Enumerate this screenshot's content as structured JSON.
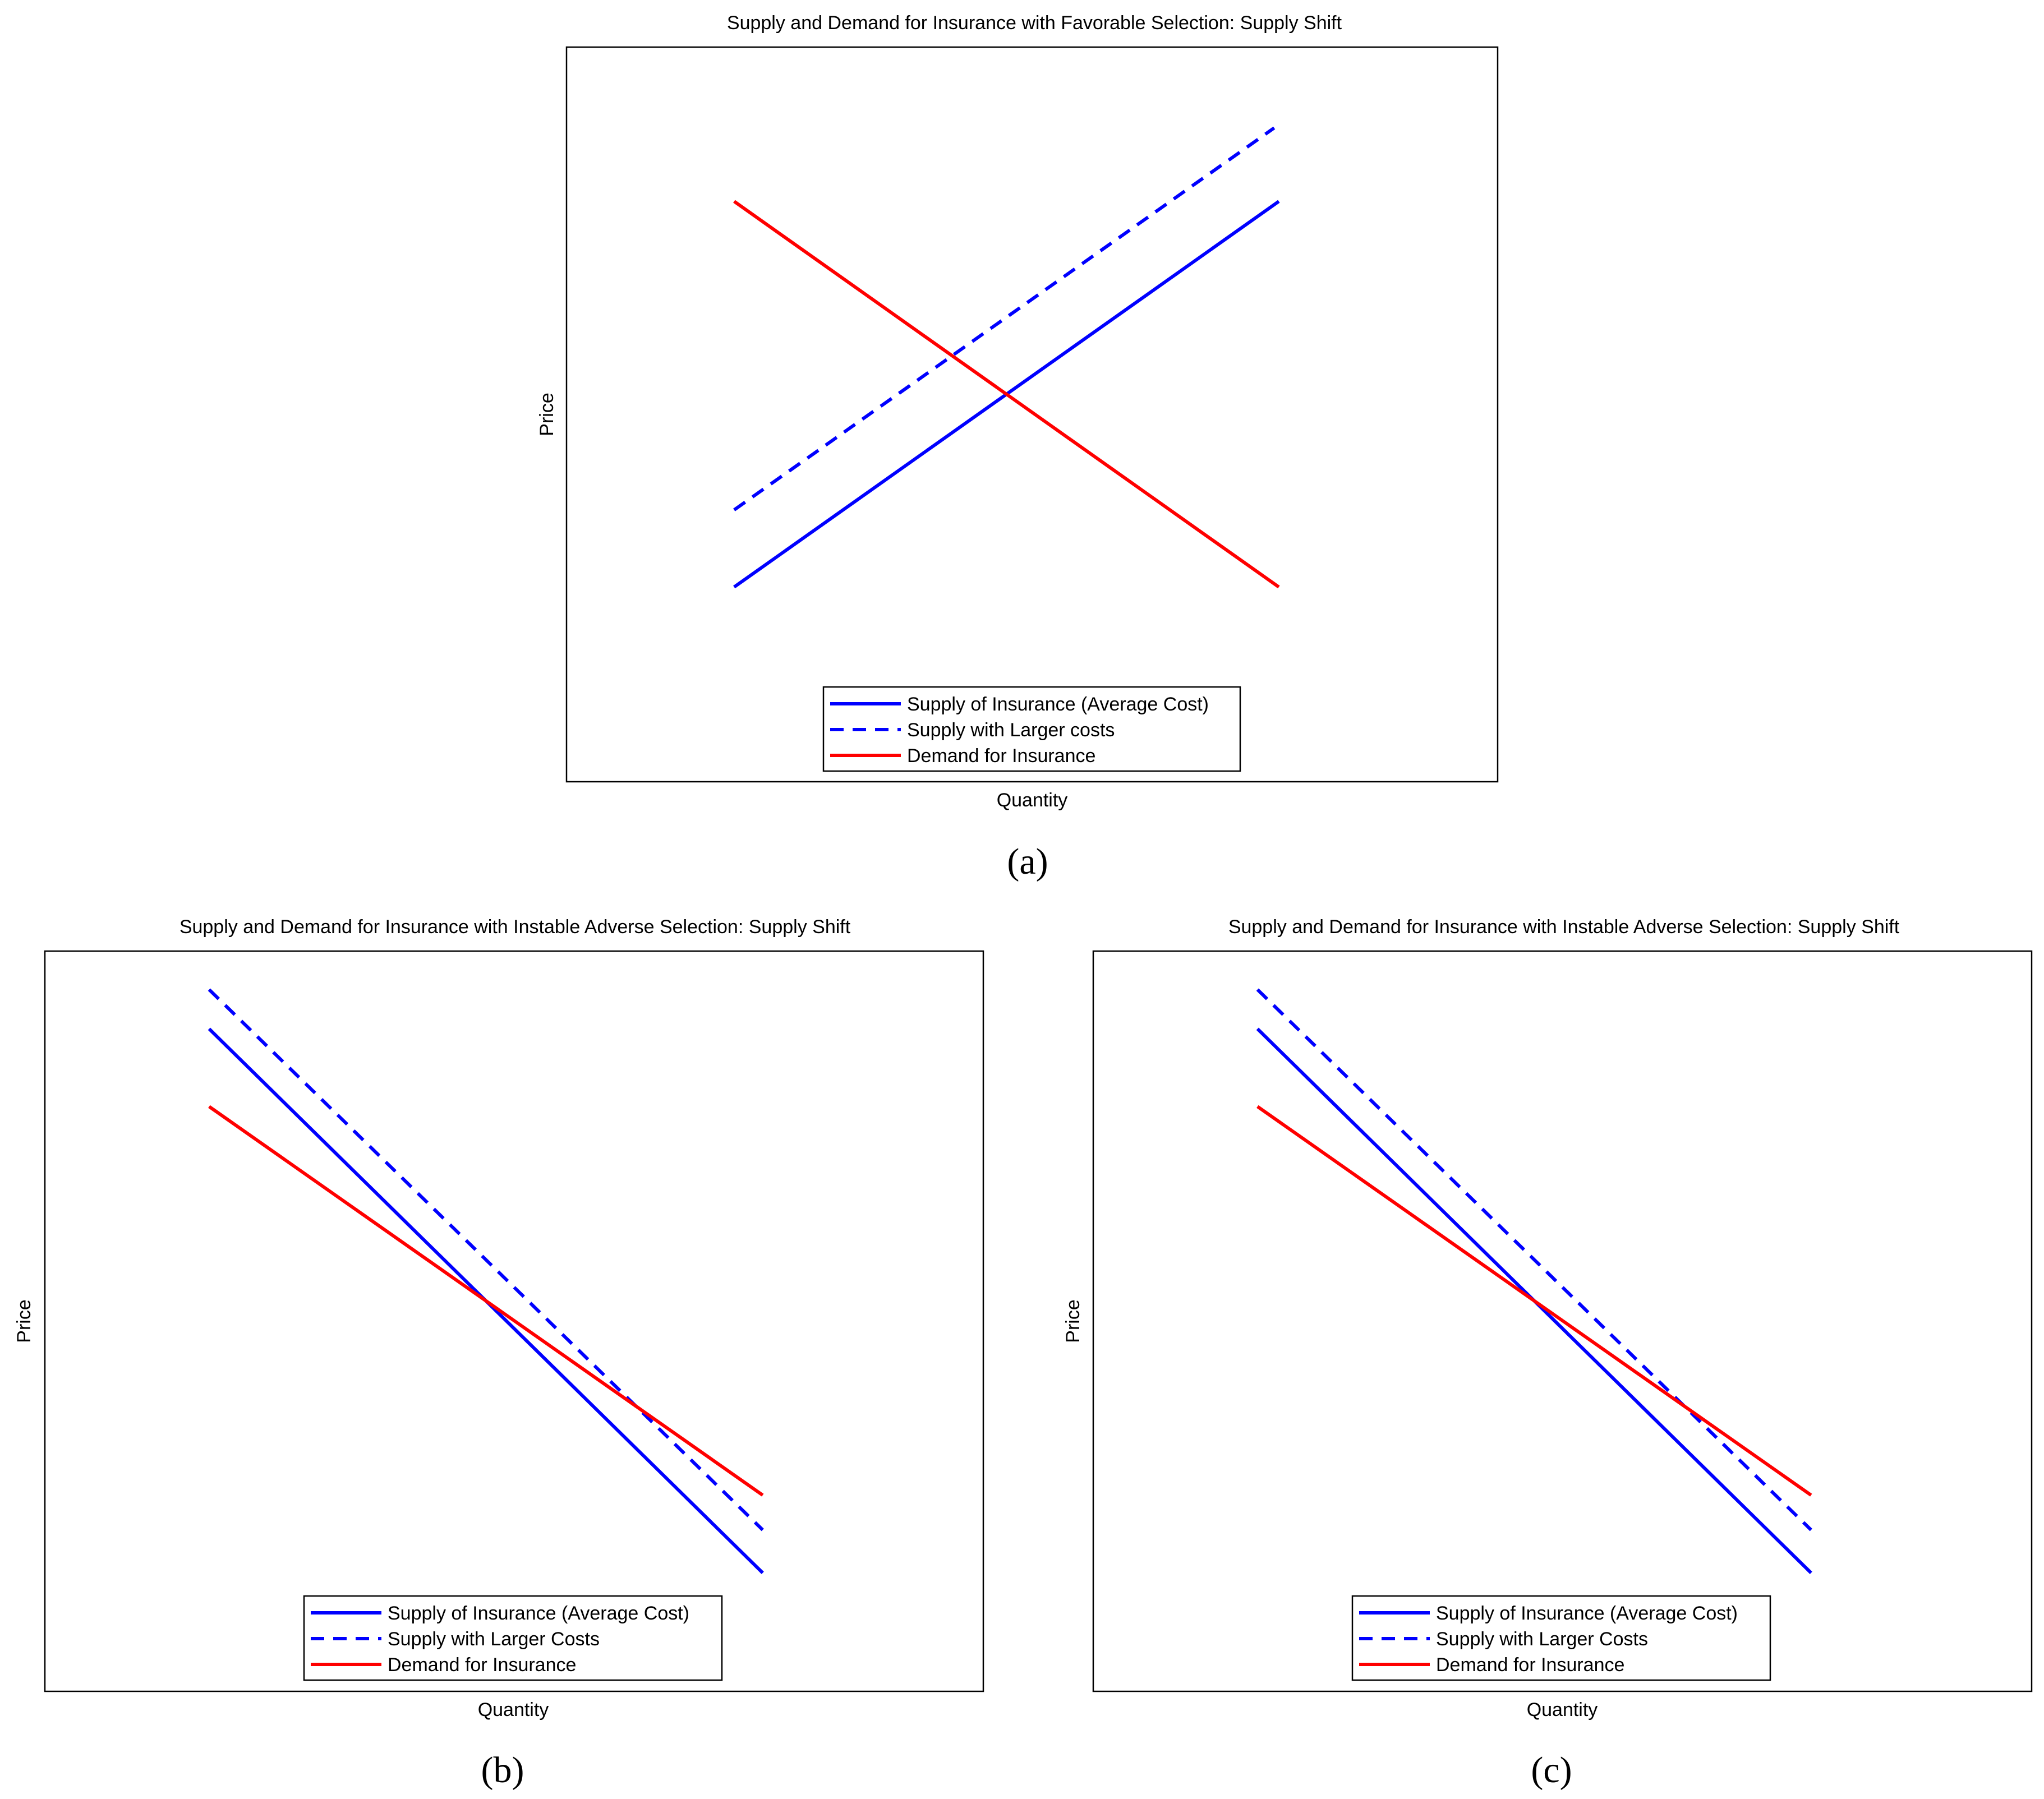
{
  "colors": {
    "supply": "#0000ff",
    "demand": "#ff0000",
    "frame": "#000000",
    "background": "#ffffff"
  },
  "panels": [
    {
      "caption": "(a)",
      "chart_data": {
        "type": "line",
        "title": "Supply and Demand for Insurance with Favorable Selection: Supply Shift",
        "xlabel": "Quantity",
        "ylabel": "Price",
        "xlim": [
          0,
          1
        ],
        "ylim": [
          0,
          1
        ],
        "grid": false,
        "ticks": false,
        "legend_position": "bottom-center",
        "series": [
          {
            "name": "Supply of Insurance (Average Cost)",
            "color": "#0000ff",
            "style": "solid",
            "x": [
              0.18,
              0.765
            ],
            "y": [
              0.265,
              0.79
            ]
          },
          {
            "name": "Supply with Larger costs",
            "color": "#0000ff",
            "style": "dashed",
            "x": [
              0.18,
              0.76
            ],
            "y": [
              0.37,
              0.89
            ]
          },
          {
            "name": "Demand for Insurance",
            "color": "#ff0000",
            "style": "solid",
            "x": [
              0.18,
              0.765
            ],
            "y": [
              0.79,
              0.265
            ]
          }
        ]
      }
    },
    {
      "caption": "(b)",
      "chart_data": {
        "type": "line",
        "title": "Supply and Demand for Insurance with Instable Adverse Selection: Supply Shift",
        "xlabel": "Quantity",
        "ylabel": "Price",
        "xlim": [
          0,
          1
        ],
        "ylim": [
          0,
          1
        ],
        "grid": false,
        "ticks": false,
        "legend_position": "bottom-center",
        "series": [
          {
            "name": "Supply of Insurance (Average Cost)",
            "color": "#0000ff",
            "style": "solid",
            "x": [
              0.175,
              0.765
            ],
            "y": [
              0.895,
              0.16
            ]
          },
          {
            "name": "Supply with Larger Costs",
            "color": "#0000ff",
            "style": "dashed",
            "x": [
              0.175,
              0.765
            ],
            "y": [
              0.948,
              0.218
            ]
          },
          {
            "name": "Demand for Insurance",
            "color": "#ff0000",
            "style": "solid",
            "x": [
              0.175,
              0.765
            ],
            "y": [
              0.79,
              0.265
            ]
          }
        ]
      }
    },
    {
      "caption": "(c)",
      "chart_data": {
        "type": "line",
        "title": "Supply and Demand for Insurance with Instable Adverse Selection: Supply Shift",
        "xlabel": "Quantity",
        "ylabel": "Price",
        "xlim": [
          0,
          1
        ],
        "ylim": [
          0,
          1
        ],
        "grid": false,
        "ticks": false,
        "legend_position": "bottom-center",
        "series": [
          {
            "name": "Supply of Insurance (Average Cost)",
            "color": "#0000ff",
            "style": "solid",
            "x": [
              0.175,
              0.765
            ],
            "y": [
              0.895,
              0.16
            ]
          },
          {
            "name": "Supply with Larger Costs",
            "color": "#0000ff",
            "style": "dashed",
            "x": [
              0.175,
              0.765
            ],
            "y": [
              0.948,
              0.218
            ]
          },
          {
            "name": "Demand for Insurance",
            "color": "#ff0000",
            "style": "solid",
            "x": [
              0.175,
              0.765
            ],
            "y": [
              0.79,
              0.265
            ]
          }
        ]
      }
    }
  ]
}
